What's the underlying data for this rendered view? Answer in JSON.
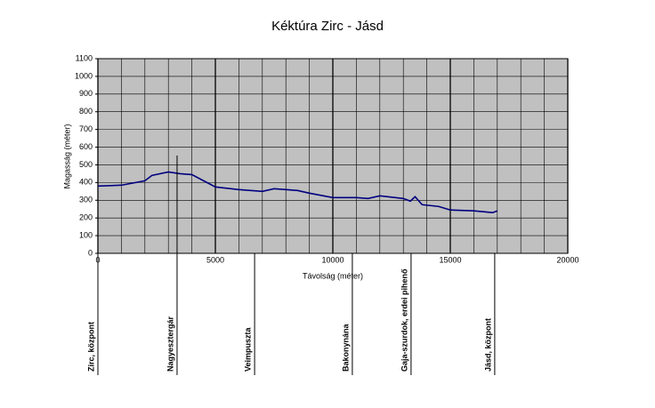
{
  "chart_data": {
    "type": "line",
    "title": "Kéktúra Zirc - Jásd",
    "x_label": "Távolság (méter)",
    "y_label": "Magasság (méter)",
    "x": [
      0,
      1000,
      2000,
      2300,
      3000,
      3500,
      4000,
      4500,
      5000,
      6000,
      7000,
      7500,
      8500,
      9000,
      10000,
      11000,
      11500,
      12000,
      13000,
      13300,
      13500,
      13800,
      14500,
      15000,
      16000,
      16800,
      17000
    ],
    "series": [
      {
        "name": "Magasság",
        "color": "#000080",
        "values": [
          380,
          385,
          410,
          440,
          460,
          450,
          445,
          410,
          375,
          360,
          350,
          365,
          355,
          340,
          315,
          315,
          310,
          325,
          310,
          295,
          320,
          275,
          265,
          245,
          240,
          230,
          240
        ]
      }
    ],
    "xlim": [
      0,
      20000
    ],
    "xticks": [
      0,
      5000,
      10000,
      15000,
      20000
    ],
    "ylim": [
      0,
      1100
    ],
    "yticks": [
      0,
      100,
      200,
      300,
      400,
      500,
      600,
      700,
      800,
      900,
      1000,
      1100
    ],
    "grid": true,
    "plot_color": "#c0c0c0",
    "annotations": [
      {
        "label": "Zirc, központ",
        "x": 0
      },
      {
        "label": "Nagyesztergár",
        "x": 3370
      },
      {
        "label": "Veimpuszta",
        "x": 6670
      },
      {
        "label": "Bakonynána",
        "x": 10830
      },
      {
        "label": "Gaja-szurdok, erdei pihenő",
        "x": 13330
      },
      {
        "label": "Jásd, központ",
        "x": 16890
      }
    ]
  }
}
